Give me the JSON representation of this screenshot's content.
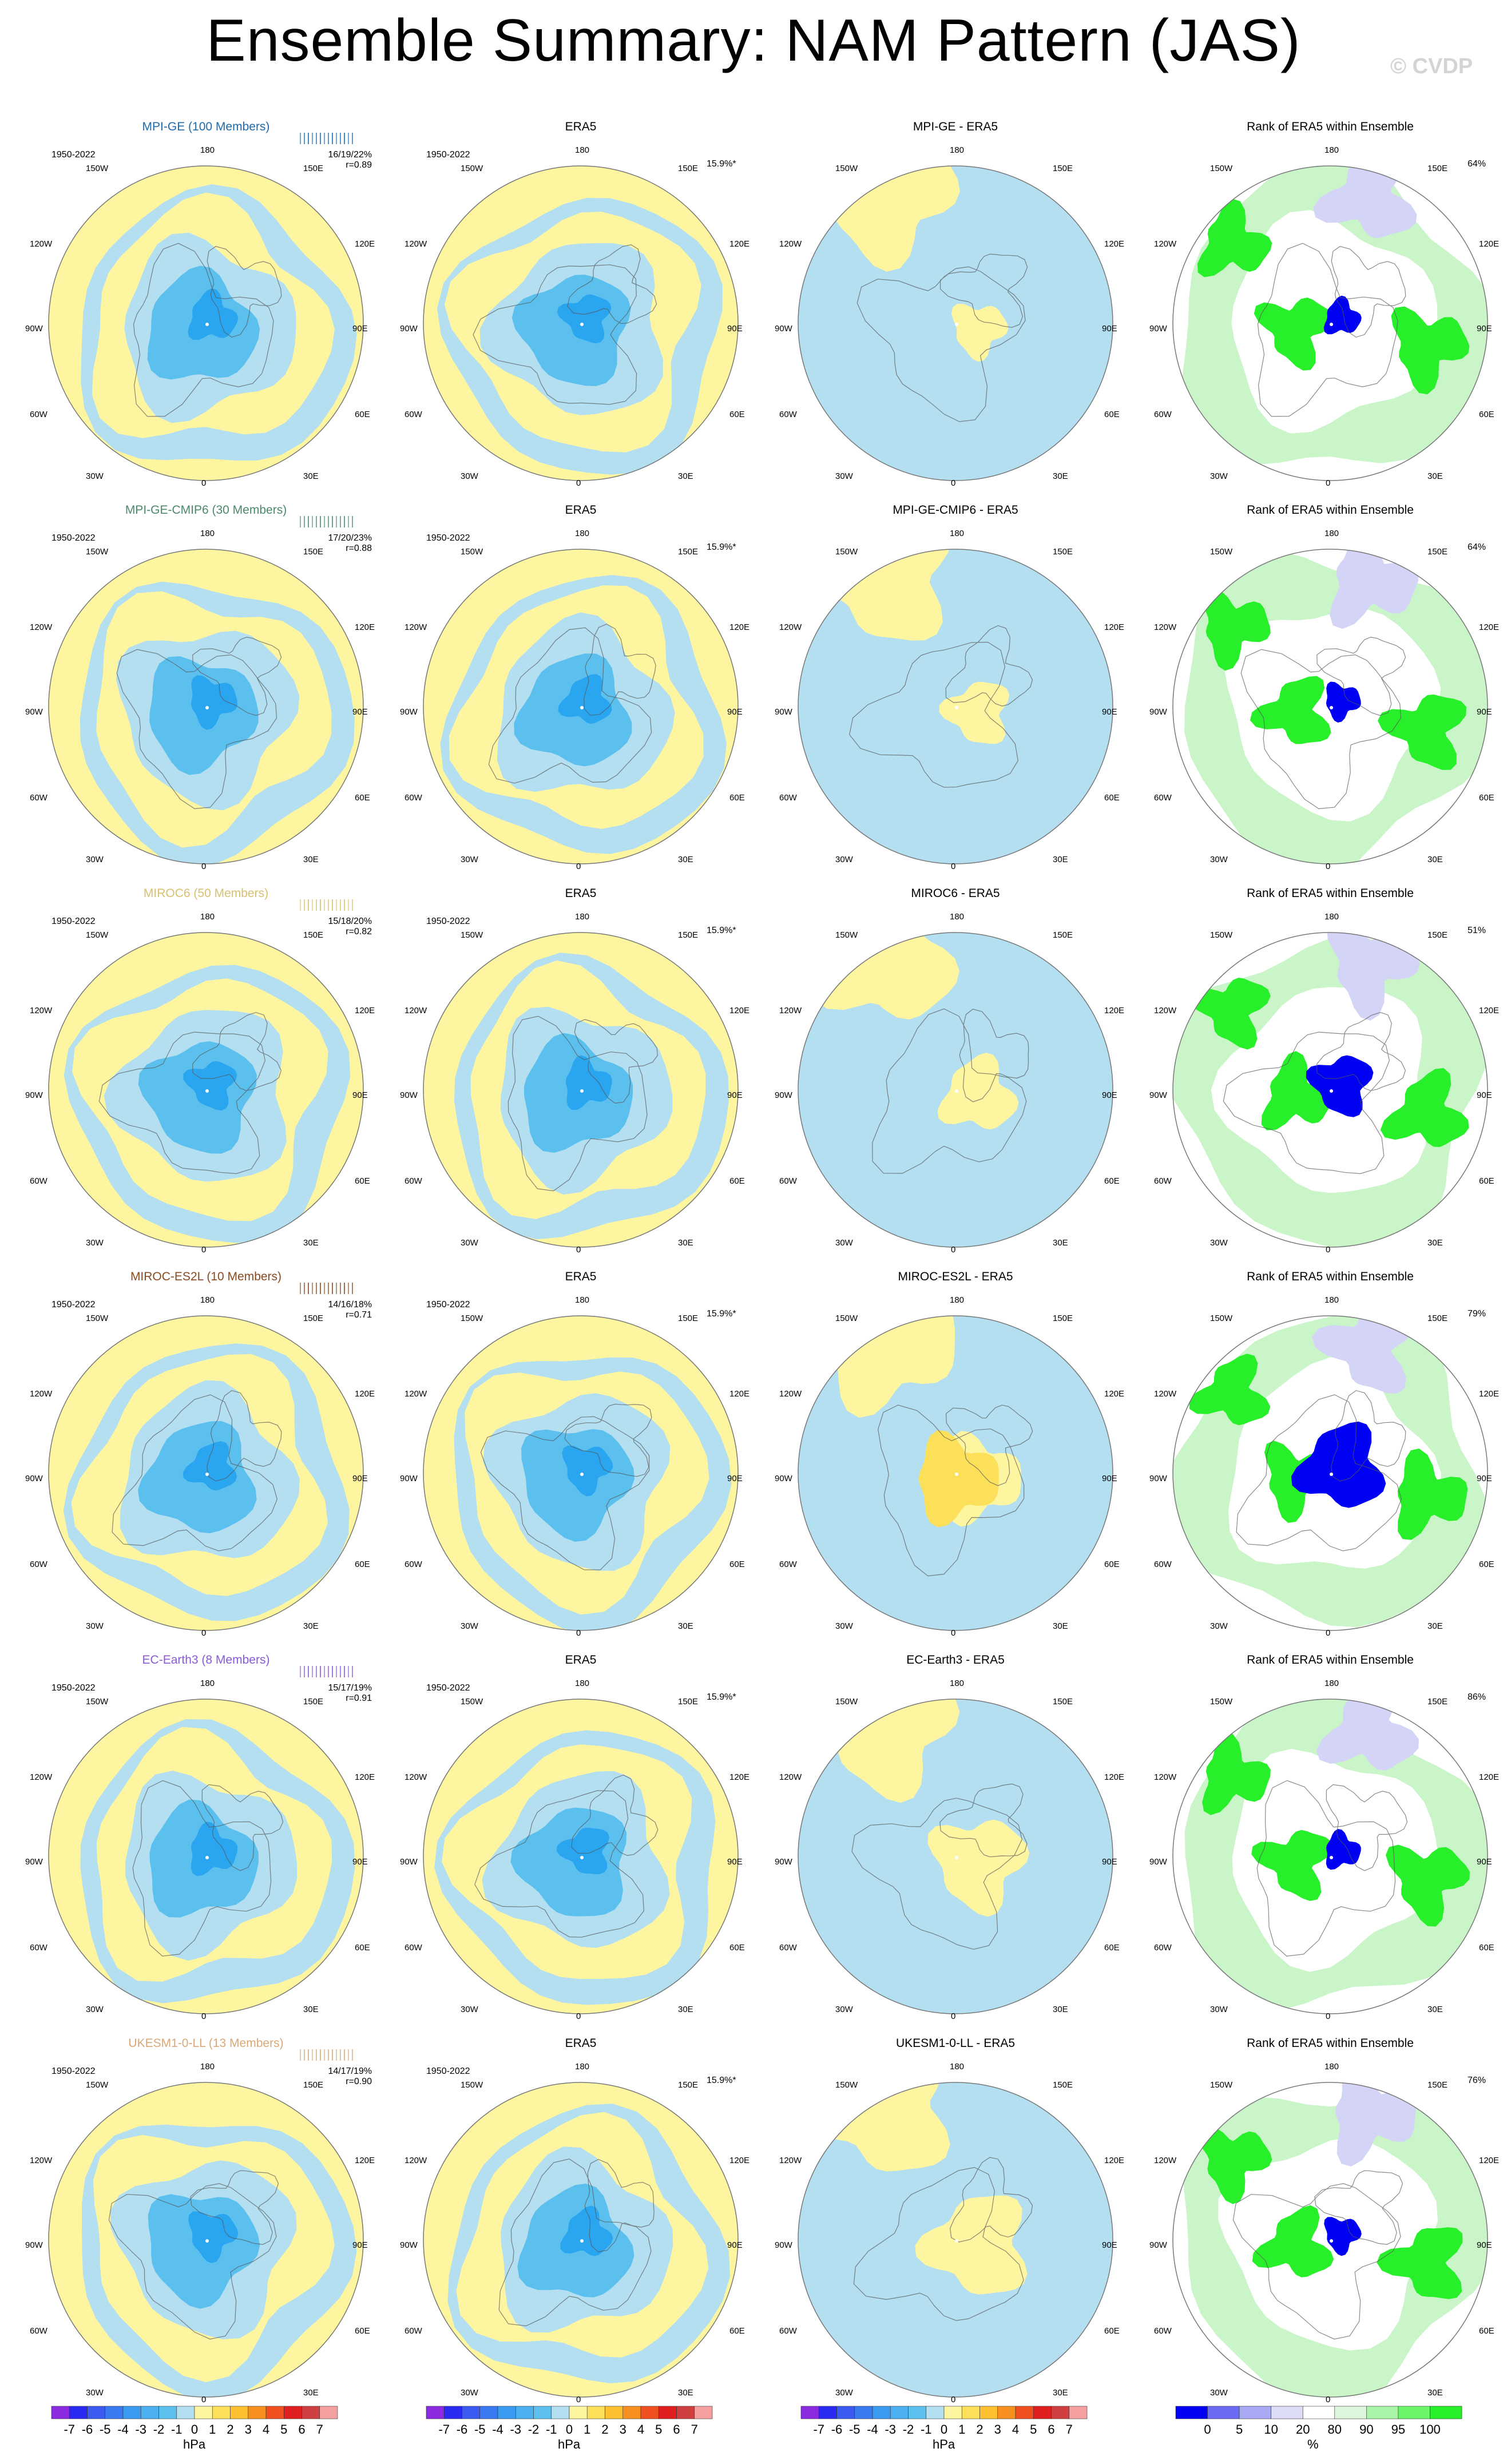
{
  "title": "Ensemble Summary: NAM Pattern (JAS)",
  "watermark": "© CVDP",
  "colors": {
    "neg_light": "#b3dff1",
    "pos_light": "#fdf5a0",
    "neg_mid": "#5cc0ee",
    "neg_dark": "#2aa5f0",
    "pos_mid": "#fde05a",
    "rank_green": "#27f02a",
    "rank_lightgreen": "#c9f5c9",
    "rank_blue": "#0000f5",
    "rank_lightblue": "#d4d4f7"
  },
  "lon_labels": {
    "top": "180",
    "bottom": "0",
    "tl": "150W",
    "tr": "150E",
    "ul": "120W",
    "ur": "120E",
    "ml": "90W",
    "mr": "90E",
    "ll": "60W",
    "lr": "60E",
    "bl": "30W",
    "br": "30E"
  },
  "years": "1950-2022",
  "era5_pct": "15.9%*",
  "rows": [
    {
      "model": "MPI-GE (100 Members)",
      "model_color": "#1f6bb0",
      "stats1": "16/19/22%",
      "stats2": "r=0.89",
      "diff_title": "MPI-GE - ERA5",
      "rank_pct": "64%"
    },
    {
      "model": "MPI-GE-CMIP6 (30 Members)",
      "model_color": "#4a8a6a",
      "stats1": "17/20/23%",
      "stats2": "r=0.88",
      "diff_title": "MPI-GE-CMIP6 - ERA5",
      "rank_pct": "64%"
    },
    {
      "model": "MIROC6 (50 Members)",
      "model_color": "#d8c070",
      "stats1": "15/18/20%",
      "stats2": "r=0.82",
      "diff_title": "MIROC6 - ERA5",
      "rank_pct": "51%"
    },
    {
      "model": "MIROC-ES2L (10 Members)",
      "model_color": "#8a4a20",
      "stats1": "14/16/18%",
      "stats2": "r=0.71",
      "diff_title": "MIROC-ES2L - ERA5",
      "rank_pct": "79%"
    },
    {
      "model": "EC-Earth3 (8 Members)",
      "model_color": "#8a5ad8",
      "stats1": "15/17/19%",
      "stats2": "r=0.91",
      "diff_title": "EC-Earth3 - ERA5",
      "rank_pct": "86%"
    },
    {
      "model": "UKESM1-0-LL (13 Members)",
      "model_color": "#d8a878",
      "stats1": "14/17/19%",
      "stats2": "r=0.90",
      "diff_title": "UKESM1-0-LL - ERA5",
      "rank_pct": "76%"
    }
  ],
  "era5_title": "ERA5",
  "rank_title": "Rank of ERA5 within Ensemble",
  "colorbar_hpa": {
    "labels": [
      "-7",
      "-6",
      "-5",
      "-4",
      "-3",
      "-2",
      "-1",
      "0",
      "1",
      "2",
      "3",
      "4",
      "5",
      "6",
      "7"
    ],
    "colors": [
      "#8a2be2",
      "#2a2af0",
      "#3a5af0",
      "#3a7af0",
      "#3a9af0",
      "#4ab0f0",
      "#5cc0ee",
      "#b3dff1",
      "#fdf5a0",
      "#fde05a",
      "#fdc030",
      "#f89020",
      "#f05020",
      "#e02020",
      "#d04040",
      "#f4a0a0"
    ],
    "unit": "hPa"
  },
  "colorbar_rank": {
    "labels": [
      "0",
      "5",
      "10",
      "20",
      "80",
      "90",
      "95",
      "100"
    ],
    "colors": [
      "#0000f5",
      "#6a6af5",
      "#a8a8f5",
      "#dcdcf7",
      "#ffffff",
      "#dcf7dc",
      "#a8f5a8",
      "#6af56a",
      "#27f02a"
    ],
    "unit": "%"
  }
}
